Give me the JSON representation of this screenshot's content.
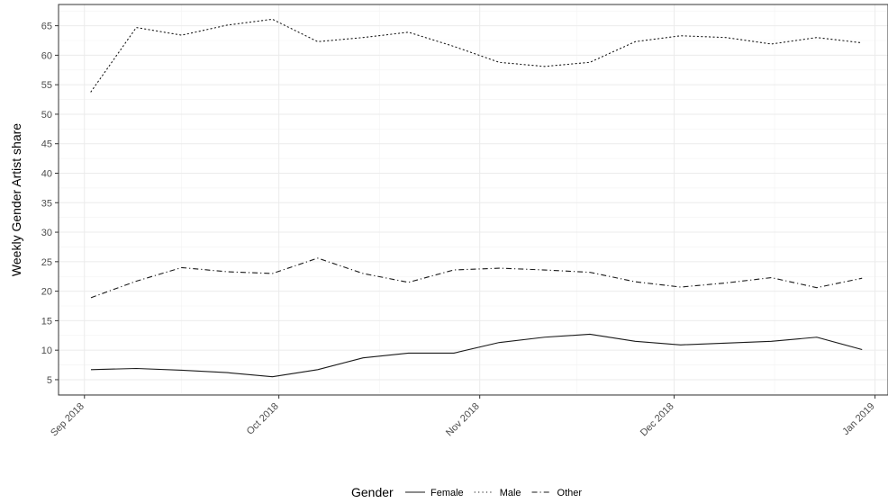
{
  "chart_data": {
    "type": "line",
    "title": "",
    "xlabel": "",
    "ylabel": "Weekly Gender Artist share",
    "x": [
      "2018-09-02",
      "2018-09-09",
      "2018-09-16",
      "2018-09-23",
      "2018-09-30",
      "2018-10-07",
      "2018-10-14",
      "2018-10-21",
      "2018-10-28",
      "2018-11-04",
      "2018-11-11",
      "2018-11-18",
      "2018-11-25",
      "2018-12-02",
      "2018-12-09",
      "2018-12-16",
      "2018-12-23",
      "2018-12-30"
    ],
    "x_ticks": [
      "Sep 2018",
      "Oct 2018",
      "Nov 2018",
      "Dec 2018",
      "Jan 2019"
    ],
    "y_ticks": [
      5,
      10,
      15,
      20,
      25,
      30,
      35,
      40,
      45,
      50,
      55,
      60,
      65
    ],
    "ylim": [
      2.4,
      68.6
    ],
    "xlim": [
      "2018-08-28",
      "2019-01-03"
    ],
    "grid": true,
    "legend_position": "bottom",
    "legend_title": "Gender",
    "series": [
      {
        "name": "Female",
        "linestyle": "solid",
        "color": "#1a1a1a",
        "values": [
          6.7,
          6.9,
          6.6,
          6.2,
          5.5,
          6.7,
          8.7,
          9.5,
          9.5,
          11.3,
          12.2,
          12.7,
          11.5,
          10.9,
          11.2,
          11.5,
          12.2,
          10.1
        ]
      },
      {
        "name": "Male",
        "linestyle": "dotted",
        "color": "#1a1a1a",
        "values": [
          53.8,
          64.7,
          63.4,
          65.1,
          66.1,
          62.3,
          63.0,
          63.9,
          61.5,
          58.8,
          58.1,
          58.8,
          62.3,
          63.3,
          63.0,
          61.9,
          63.0,
          62.1
        ]
      },
      {
        "name": "Other",
        "linestyle": "dashdot",
        "color": "#1a1a1a",
        "values": [
          18.9,
          21.7,
          24.0,
          23.3,
          23.0,
          25.6,
          23.0,
          21.5,
          23.6,
          23.9,
          23.6,
          23.2,
          21.6,
          20.7,
          21.4,
          22.3,
          20.6,
          22.2
        ]
      }
    ]
  }
}
